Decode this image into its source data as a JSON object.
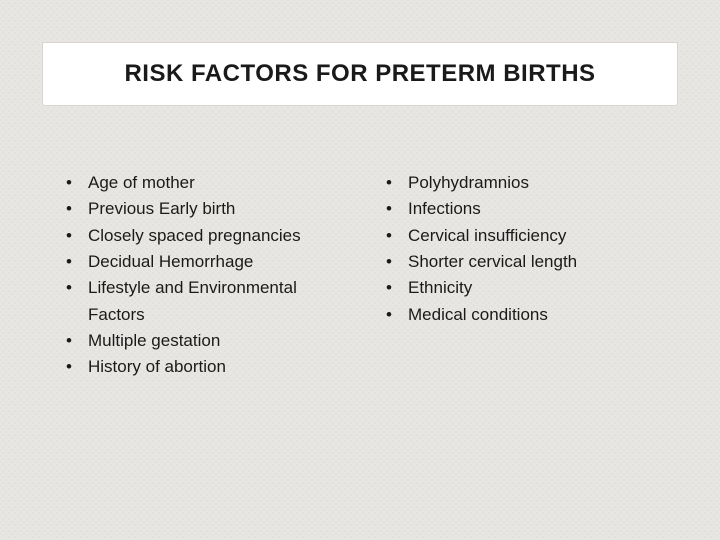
{
  "slide": {
    "title": "RISK FACTORS FOR PRETERM BIRTHS",
    "background_color": "#e8e6e2",
    "title_box": {
      "background_color": "#ffffff",
      "border_color": "#d9d6d0",
      "font_size_pt": 18,
      "font_weight": 700,
      "text_color": "#1a1a1a"
    },
    "body": {
      "font_size_pt": 13,
      "text_color": "#1a1a1a",
      "bullet_char": "•"
    },
    "columns": [
      {
        "items": [
          "Age of mother",
          "Previous Early birth",
          "Closely spaced pregnancies",
          "Decidual Hemorrhage",
          "Lifestyle and Environmental Factors",
          "Multiple gestation",
          "History of abortion"
        ]
      },
      {
        "items": [
          "Polyhydramnios",
          "Infections",
          "Cervical insufficiency",
          "Shorter cervical length",
          "Ethnicity",
          "Medical conditions"
        ]
      }
    ]
  }
}
